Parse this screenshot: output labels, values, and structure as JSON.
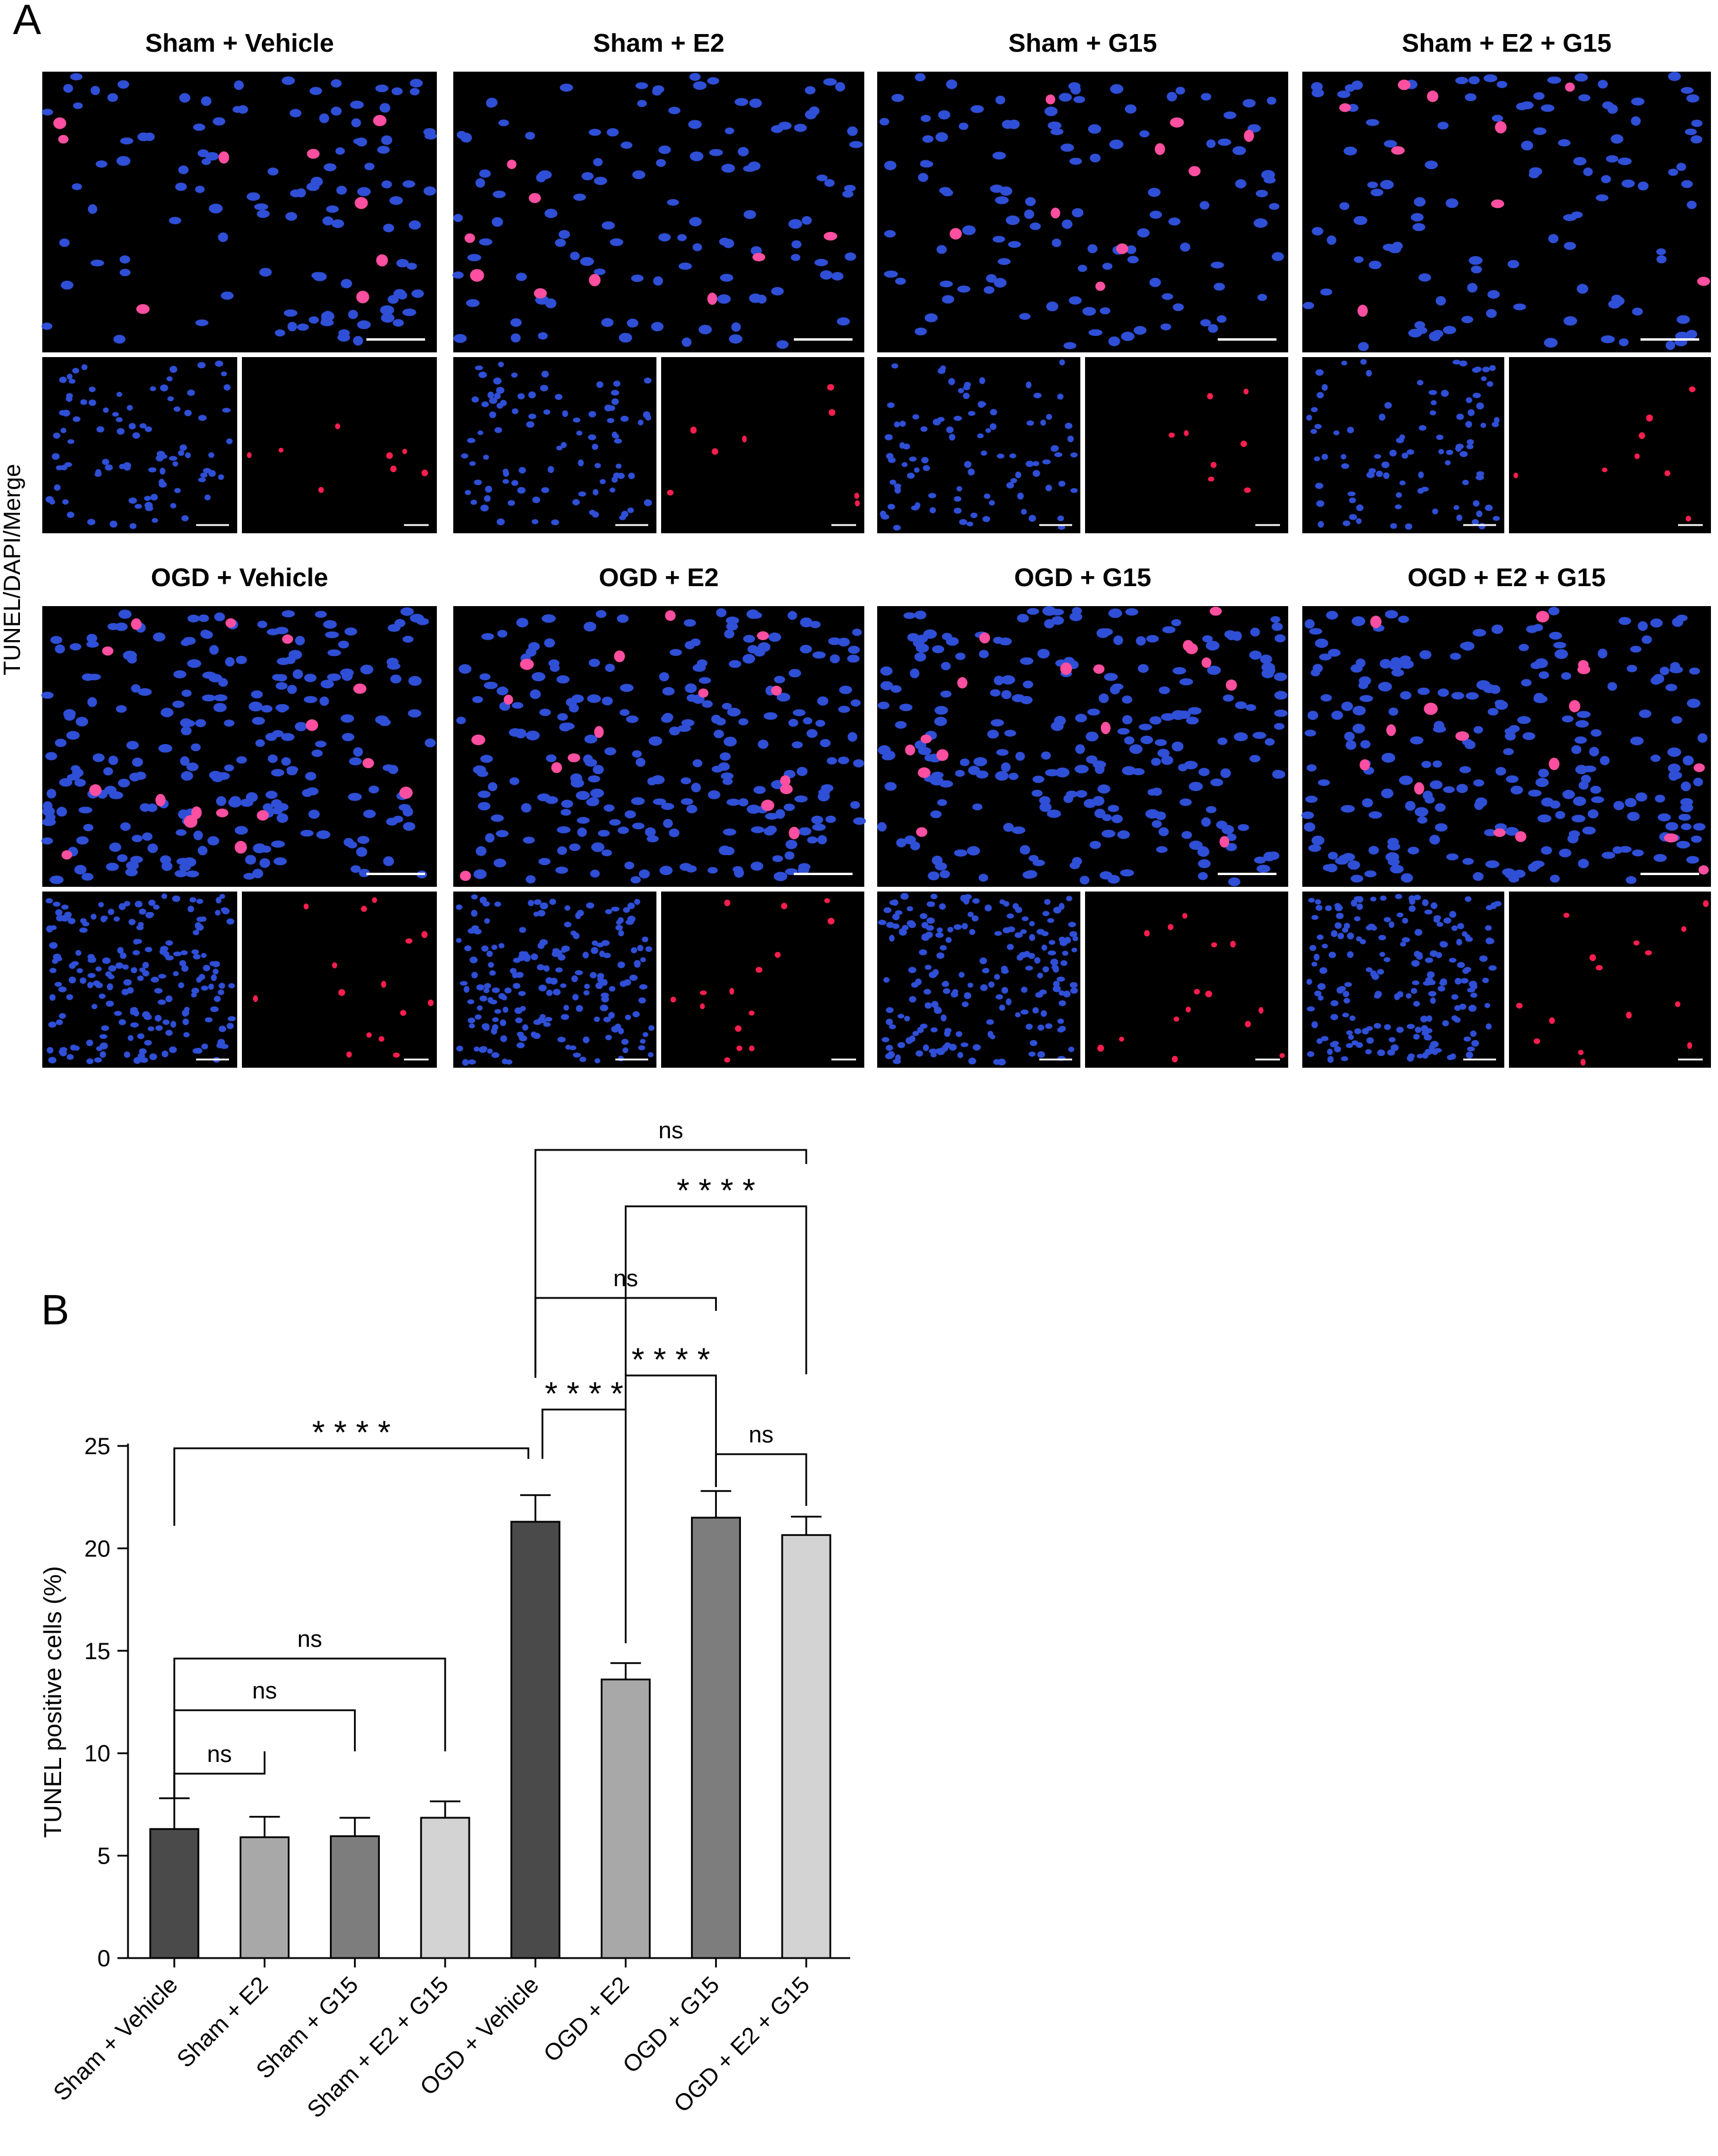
{
  "panel_a": {
    "letter": "A",
    "side_label": "TUNEL/DAPI/Merge",
    "groups": [
      "Sham + Vehicle",
      "Sham + E2",
      "Sham + G15",
      "Sham + E2 + G15",
      "OGD + Vehicle",
      "OGD + E2",
      "OGD + G15",
      "OGD + E2 + G15"
    ],
    "colors": {
      "background": "#000000",
      "dapi": "#2f4fd6",
      "tunel": "#ff1f4f",
      "merge_core": "#ff4fa0"
    }
  },
  "panel_b": {
    "letter": "B"
  },
  "chart_data": {
    "type": "bar",
    "ylabel": "TUNEL positive cells (%)",
    "ylim": [
      0,
      25
    ],
    "yticks": [
      0,
      5,
      10,
      15,
      20,
      25
    ],
    "categories": [
      "Sham + Vehicle",
      "Sham + E2",
      "Sham + G15",
      "Sham + E2 + G15",
      "OGD + Vehicle",
      "OGD + E2",
      "OGD + G15",
      "OGD + E2 + G15"
    ],
    "values": [
      6.3,
      5.9,
      5.95,
      6.85,
      21.3,
      13.6,
      21.5,
      20.65
    ],
    "errors": [
      1.5,
      1.0,
      0.9,
      0.8,
      1.3,
      0.8,
      1.3,
      0.9
    ],
    "bar_colors": [
      "#4a4a4a",
      "#a8a8a8",
      "#7d7d7d",
      "#d3d3d3",
      "#4a4a4a",
      "#a8a8a8",
      "#7d7d7d",
      "#d3d3d3"
    ],
    "comparisons": [
      {
        "groups": [
          0,
          1
        ],
        "label": "ns"
      },
      {
        "groups": [
          0,
          2
        ],
        "label": "ns"
      },
      {
        "groups": [
          0,
          3
        ],
        "label": "ns"
      },
      {
        "groups": [
          0,
          4
        ],
        "label": "* * * *"
      },
      {
        "groups": [
          4,
          5
        ],
        "label": "* * * *"
      },
      {
        "groups": [
          5,
          6
        ],
        "label": "* * * *"
      },
      {
        "groups": [
          6,
          7
        ],
        "label": "ns"
      },
      {
        "groups": [
          4,
          6
        ],
        "label": "ns"
      },
      {
        "groups": [
          5,
          7
        ],
        "label": "* * * *"
      },
      {
        "groups": [
          4,
          7
        ],
        "label": "ns"
      }
    ]
  }
}
